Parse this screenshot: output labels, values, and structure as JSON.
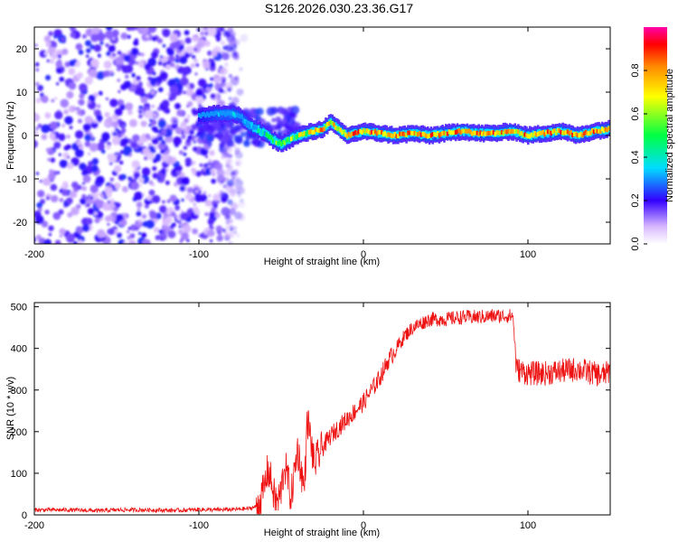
{
  "title": "S126.2026.030.23.36.G17",
  "chart_data": [
    {
      "type": "heatmap",
      "name": "spectrogram",
      "xlabel": "Height of straight line (km)",
      "ylabel": "Frequency (Hz)",
      "xlim": [
        -200,
        150
      ],
      "ylim": [
        -25,
        25
      ],
      "xticks": [
        -200,
        -100,
        0,
        100
      ],
      "xtick_labels": [
        "-200",
        "-100",
        "0",
        "100"
      ],
      "yticks": [
        -20,
        -10,
        0,
        10,
        20
      ],
      "ytick_labels": [
        "-20",
        "-10",
        "0",
        "10",
        "20"
      ],
      "noise_region_x": [
        -200,
        -75
      ],
      "signal_track": {
        "x": [
          -100,
          -90,
          -80,
          -75,
          -70,
          -65,
          -60,
          -55,
          -50,
          -45,
          -40,
          -35,
          -30,
          -25,
          -20,
          -15,
          -10,
          -5,
          0,
          10,
          20,
          30,
          40,
          50,
          60,
          70,
          80,
          90,
          100,
          110,
          120,
          130,
          140,
          150
        ],
        "freq": [
          4.5,
          5,
          5,
          4.5,
          2.5,
          1.5,
          0.5,
          -1,
          -2,
          -1,
          0,
          0.5,
          1,
          1.5,
          3,
          1.5,
          0,
          0.5,
          1,
          0.5,
          0,
          0.5,
          0,
          0.5,
          1,
          0.5,
          0.5,
          1,
          0,
          0.5,
          1,
          0,
          1,
          1.5
        ],
        "amplitude": [
          0.3,
          0.35,
          0.4,
          0.35,
          0.45,
          0.5,
          0.55,
          0.6,
          0.65,
          0.7,
          0.75,
          0.8,
          0.85,
          0.9,
          0.9,
          0.9,
          0.9,
          0.95,
          0.95,
          0.95,
          0.95,
          0.95,
          0.95,
          0.95,
          0.95,
          0.95,
          0.95,
          0.95,
          0.95,
          0.95,
          0.95,
          0.95,
          0.95,
          0.95
        ]
      },
      "colorbar": {
        "label": "Normalized spectral amplitude",
        "range": [
          0.0,
          1.0
        ],
        "ticks": [
          0.0,
          0.2,
          0.4,
          0.6,
          0.8
        ],
        "tick_labels": [
          "0.0",
          "0.2",
          "0.4",
          "0.6",
          "0.8"
        ]
      }
    },
    {
      "type": "line",
      "name": "snr",
      "xlabel": "Height of straight line (km)",
      "ylabel": "SNR (10 * v/v)",
      "xlim": [
        -200,
        150
      ],
      "ylim": [
        0,
        510
      ],
      "xticks": [
        -200,
        -100,
        0,
        100
      ],
      "xtick_labels": [
        "-200",
        "-100",
        "0",
        "100"
      ],
      "yticks": [
        0,
        100,
        200,
        300,
        400,
        500
      ],
      "ytick_labels": [
        "0",
        "100",
        "200",
        "300",
        "400",
        "500"
      ],
      "color": "#ee1111",
      "series": [
        {
          "name": "SNR",
          "x": [
            -200,
            -190,
            -180,
            -170,
            -160,
            -150,
            -140,
            -130,
            -120,
            -110,
            -100,
            -90,
            -80,
            -70,
            -65,
            -62,
            -60,
            -58,
            -56,
            -54,
            -52,
            -50,
            -48,
            -46,
            -44,
            -42,
            -40,
            -38,
            -36,
            -34,
            -32,
            -30,
            -25,
            -20,
            -15,
            -10,
            -5,
            0,
            5,
            10,
            15,
            20,
            25,
            30,
            35,
            40,
            50,
            60,
            70,
            80,
            88,
            91,
            92,
            93,
            100,
            110,
            120,
            130,
            140,
            145,
            150
          ],
          "y": [
            12,
            12,
            12,
            11,
            10,
            12,
            12,
            12,
            11,
            11,
            13,
            12,
            13,
            15,
            20,
            40,
            70,
            110,
            80,
            40,
            30,
            60,
            120,
            90,
            40,
            100,
            160,
            110,
            60,
            230,
            180,
            120,
            160,
            190,
            210,
            230,
            250,
            270,
            300,
            330,
            370,
            400,
            430,
            450,
            460,
            470,
            470,
            475,
            475,
            478,
            478,
            478,
            410,
            350,
            340,
            340,
            345,
            350,
            340,
            335,
            345
          ]
        }
      ]
    }
  ]
}
